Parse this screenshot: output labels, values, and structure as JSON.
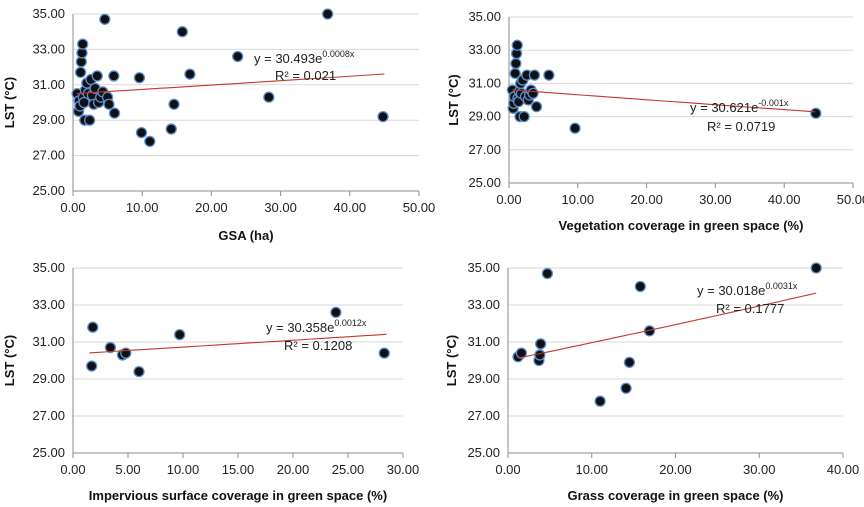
{
  "chart_data": [
    {
      "type": "scatter",
      "xlabel": "GSA (ha)",
      "ylabel": "LST (°C)",
      "xlim": [
        0,
        50
      ],
      "ylim": [
        25,
        35
      ],
      "x_ticks": [
        "0.00",
        "10.00",
        "20.00",
        "30.00",
        "40.00",
        "50.00"
      ],
      "y_ticks": [
        "25.00",
        "27.00",
        "29.00",
        "31.00",
        "33.00",
        "35.00"
      ],
      "grid": true,
      "equation": {
        "prefix": "y = 30.493e",
        "exponent": "0.0008x"
      },
      "r2": "R² = 0.021",
      "trendline": {
        "a": 30.493,
        "b": 0.0008,
        "x_from": 0.5,
        "x_to": 45
      },
      "points": [
        [
          0.6,
          30.5
        ],
        [
          0.8,
          29.5
        ],
        [
          0.9,
          30.1
        ],
        [
          1.0,
          29.8
        ],
        [
          1.1,
          31.7
        ],
        [
          1.2,
          32.3
        ],
        [
          1.3,
          32.8
        ],
        [
          1.4,
          33.3
        ],
        [
          1.5,
          30.3
        ],
        [
          1.6,
          30.0
        ],
        [
          1.7,
          29.0
        ],
        [
          1.8,
          30.7
        ],
        [
          2.0,
          31.1
        ],
        [
          2.2,
          30.5
        ],
        [
          2.4,
          29.0
        ],
        [
          2.6,
          31.3
        ],
        [
          2.8,
          30.4
        ],
        [
          3.0,
          29.9
        ],
        [
          3.2,
          30.8
        ],
        [
          3.5,
          31.5
        ],
        [
          3.7,
          30.0
        ],
        [
          4.0,
          30.3
        ],
        [
          4.3,
          30.6
        ],
        [
          4.6,
          34.7
        ],
        [
          5.0,
          30.3
        ],
        [
          5.2,
          29.9
        ],
        [
          5.9,
          31.5
        ],
        [
          6.0,
          29.4
        ],
        [
          9.6,
          31.4
        ],
        [
          9.9,
          28.3
        ],
        [
          11.1,
          27.8
        ],
        [
          14.2,
          28.5
        ],
        [
          14.6,
          29.9
        ],
        [
          15.8,
          34.0
        ],
        [
          16.9,
          31.6
        ],
        [
          23.8,
          32.6
        ],
        [
          28.3,
          30.3
        ],
        [
          36.8,
          35.0
        ],
        [
          44.8,
          29.2
        ]
      ]
    },
    {
      "type": "scatter",
      "xlabel": "Vegetation coverage in green space (%)",
      "ylabel": "LST (°C)",
      "xlim": [
        0,
        50
      ],
      "ylim": [
        25,
        35
      ],
      "x_ticks": [
        "0.00",
        "10.00",
        "20.00",
        "30.00",
        "40.00",
        "50.00"
      ],
      "y_ticks": [
        "25.00",
        "27.00",
        "29.00",
        "31.00",
        "33.00",
        "35.00"
      ],
      "grid": true,
      "equation": {
        "prefix": "y = 30.621e",
        "exponent": "-0.001x"
      },
      "r2": "R² = 0.0719",
      "trendline": {
        "a": 30.621,
        "b": -0.001,
        "x_from": 0.5,
        "x_to": 44.5
      },
      "points": [
        [
          0.5,
          30.6
        ],
        [
          0.6,
          29.5
        ],
        [
          0.7,
          29.8
        ],
        [
          0.8,
          30.2
        ],
        [
          0.9,
          31.6
        ],
        [
          1.0,
          32.2
        ],
        [
          1.1,
          32.8
        ],
        [
          1.2,
          33.3
        ],
        [
          1.3,
          30.1
        ],
        [
          1.4,
          29.9
        ],
        [
          1.5,
          30.5
        ],
        [
          1.6,
          29.0
        ],
        [
          1.7,
          31.0
        ],
        [
          1.8,
          30.4
        ],
        [
          2.0,
          31.2
        ],
        [
          2.2,
          29.0
        ],
        [
          2.4,
          30.2
        ],
        [
          2.6,
          31.5
        ],
        [
          2.8,
          30.0
        ],
        [
          3.0,
          30.3
        ],
        [
          3.2,
          30.6
        ],
        [
          3.5,
          30.4
        ],
        [
          3.7,
          31.5
        ],
        [
          4.0,
          29.6
        ],
        [
          5.8,
          31.5
        ],
        [
          9.6,
          28.3
        ],
        [
          44.6,
          29.2
        ]
      ]
    },
    {
      "type": "scatter",
      "xlabel": "Impervious surface coverage in green space  (%)",
      "ylabel": "LST (°C)",
      "xlim": [
        0,
        30
      ],
      "ylim": [
        25,
        35
      ],
      "x_ticks": [
        "0.00",
        "5.00",
        "10.00",
        "15.00",
        "20.00",
        "25.00",
        "30.00"
      ],
      "y_ticks": [
        "25.00",
        "27.00",
        "29.00",
        "31.00",
        "33.00",
        "35.00"
      ],
      "grid": true,
      "equation": {
        "prefix": "y = 30.358e",
        "exponent": "0.0012x"
      },
      "r2": "R² = 0.1208",
      "trendline": {
        "a": 30.358,
        "b": 0.0012,
        "x_from": 1.5,
        "x_to": 28.5
      },
      "points": [
        [
          1.7,
          29.7
        ],
        [
          1.8,
          31.8
        ],
        [
          3.4,
          30.7
        ],
        [
          4.5,
          30.3
        ],
        [
          4.8,
          30.4
        ],
        [
          6.0,
          29.4
        ],
        [
          9.7,
          31.4
        ],
        [
          23.9,
          32.6
        ],
        [
          28.3,
          30.4
        ]
      ]
    },
    {
      "type": "scatter",
      "xlabel": "Grass coverage in green space  (%)",
      "ylabel": "LST (°C)",
      "xlim": [
        0,
        40
      ],
      "ylim": [
        25,
        35
      ],
      "x_ticks": [
        "0.00",
        "10.00",
        "20.00",
        "30.00",
        "40.00"
      ],
      "y_ticks": [
        "25.00",
        "27.00",
        "29.00",
        "31.00",
        "33.00",
        "35.00"
      ],
      "grid": true,
      "equation": {
        "prefix": "y = 30.018e",
        "exponent": "0.0031x"
      },
      "r2": "R² = 0.1777",
      "trendline": {
        "a": 30.018,
        "b": 0.0031,
        "x_from": 1.2,
        "x_to": 36.8
      },
      "points": [
        [
          1.2,
          30.2
        ],
        [
          1.6,
          30.4
        ],
        [
          3.7,
          30.0
        ],
        [
          3.8,
          30.3
        ],
        [
          3.9,
          30.9
        ],
        [
          4.7,
          34.7
        ],
        [
          11.0,
          27.8
        ],
        [
          14.1,
          28.5
        ],
        [
          14.5,
          29.9
        ],
        [
          15.8,
          34.0
        ],
        [
          16.9,
          31.6
        ],
        [
          36.8,
          35.0
        ]
      ]
    }
  ]
}
